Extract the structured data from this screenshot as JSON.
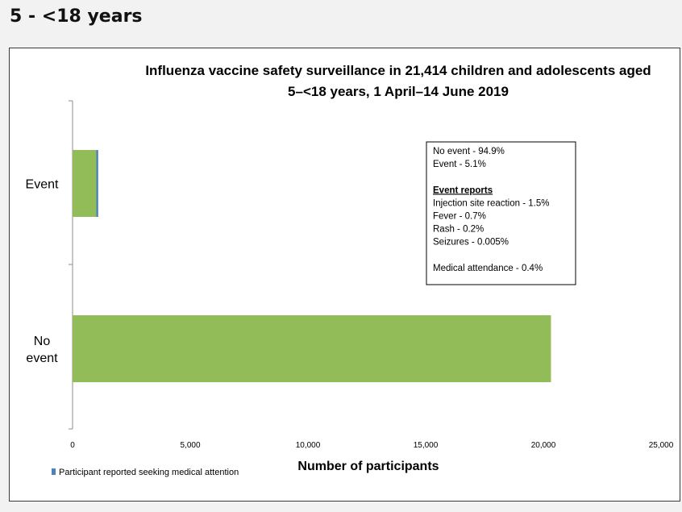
{
  "page": {
    "heading": "5 - <18 years"
  },
  "chart_data": {
    "type": "bar",
    "orientation": "horizontal",
    "title_lines": [
      "Influenza vaccine safety surveillance in 21,414 children and adolescents aged",
      "5–<18 years, 1 April–14 June 2019"
    ],
    "xlabel": "Number of participants",
    "ylabel": "",
    "xlim": [
      0,
      25000
    ],
    "xticks": [
      0,
      5000,
      10000,
      15000,
      20000,
      25000
    ],
    "xtick_labels": [
      "0",
      "5,000",
      "10,000",
      "15,000",
      "20,000",
      "25,000"
    ],
    "grid": false,
    "categories": [
      {
        "label_lines": [
          "Event"
        ],
        "stack": [
          1010,
          80
        ]
      },
      {
        "label_lines": [
          "No",
          "event"
        ],
        "stack": [
          20324,
          0
        ]
      }
    ],
    "series": [
      {
        "name": "",
        "color": "#92bc57"
      },
      {
        "name": "Participant reported seeking medical attention",
        "color": "#4f81bd"
      }
    ],
    "legend": {
      "placement": "bottom-left",
      "entries": [
        {
          "label": "Participant reported seeking medical attention",
          "color": "#4f81bd"
        }
      ]
    },
    "annotation": {
      "placement": "top-right",
      "groups": [
        [
          "No event - 94.9%",
          "Event - 5.1%"
        ],
        [
          "Event reports",
          "Injection site reaction - 1.5%",
          "Fever - 0.7%",
          "Rash - 0.2%",
          "Seizures - 0.005%"
        ],
        [
          "Medical attendance - 0.4%"
        ]
      ]
    }
  }
}
